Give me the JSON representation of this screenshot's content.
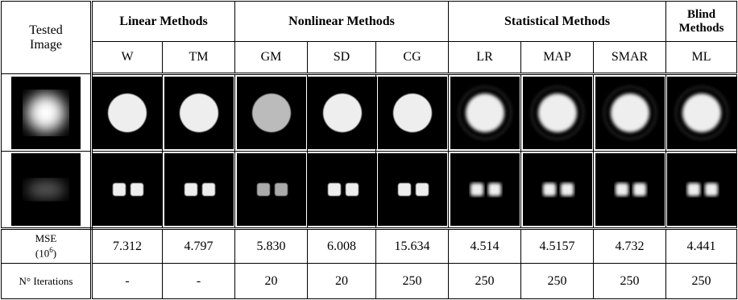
{
  "header": {
    "tested_image": "Tested Image",
    "groups": [
      "Linear Methods",
      "Nonlinear Methods",
      "Statistical Methods",
      "Blind Methods"
    ],
    "methods": [
      "W",
      "TM",
      "GM",
      "SD",
      "CG",
      "LR",
      "MAP",
      "SMAR",
      "ML"
    ]
  },
  "mse": {
    "label": "MSE",
    "unit_base": "(10",
    "unit_exp": "6",
    "unit_close": ")",
    "values": [
      "7.312",
      "4.797",
      "5.830",
      "6.008",
      "15.634",
      "4.514",
      "4.5157",
      "4.732",
      "4.441"
    ]
  },
  "iterations": {
    "label": "N° Iterations",
    "values": [
      "-",
      "-",
      "20",
      "20",
      "250",
      "250",
      "250",
      "250",
      "250"
    ]
  }
}
